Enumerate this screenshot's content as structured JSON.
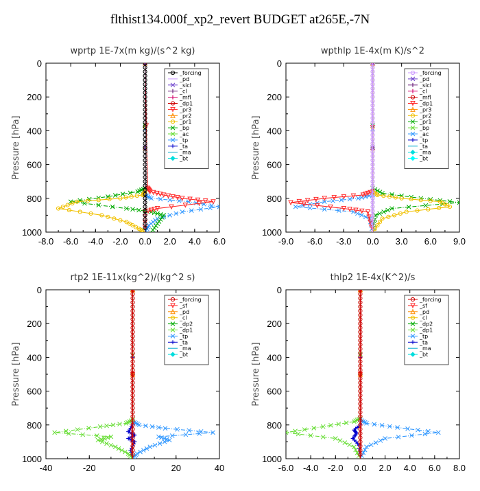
{
  "page": {
    "title": "flthist134.000f_xp2_revert  BUDGET at265E,-7N"
  },
  "chart_data": [
    {
      "type": "line",
      "title": "wprtp   1E-7x(m kg)/(s^2 kg)",
      "ylabel": "Pressure [hPa]",
      "xlim": [
        -8,
        6
      ],
      "ylim": [
        1000,
        0
      ],
      "xticks": [
        "-8.0",
        "-6.0",
        "-4.0",
        "-2.0",
        "0.0",
        "2.0",
        "4.0",
        "6.0"
      ],
      "xtick_values": [
        -8,
        -6,
        -4,
        -2,
        0,
        2,
        4,
        6
      ],
      "yticks": [
        "0",
        "200",
        "400",
        "600",
        "800",
        "1000"
      ],
      "ytick_values": [
        0,
        200,
        400,
        600,
        800,
        1000
      ],
      "legend_position": "top-right",
      "series": [
        {
          "name": "_forcing",
          "color": "#000000",
          "marker": "o",
          "x": [
            0,
            0,
            0,
            0,
            0,
            0,
            0,
            0,
            0,
            0,
            0
          ],
          "y": [
            0,
            100,
            200,
            300,
            400,
            500,
            600,
            700,
            800,
            900,
            1000
          ]
        },
        {
          "name": "_pd",
          "color": "#cc99ff",
          "marker": "-",
          "x": [
            0,
            0
          ],
          "y": [
            0,
            1000
          ]
        },
        {
          "name": "_sicl",
          "color": "#6a3dcc",
          "marker": "x",
          "x": [
            0,
            0
          ],
          "y": [
            0,
            1000
          ]
        },
        {
          "name": "_cl",
          "color": "#6b1f7a",
          "marker": "|",
          "x": [
            0,
            0
          ],
          "y": [
            0,
            1000
          ]
        },
        {
          "name": "_mfl",
          "color": "#d4006a",
          "marker": "|",
          "x": [
            0,
            0
          ],
          "y": [
            0,
            1000
          ]
        },
        {
          "name": "_dp1",
          "color": "#cc0000",
          "marker": "o",
          "x": [
            0,
            0
          ],
          "y": [
            0,
            1000
          ]
        },
        {
          "name": "_pr3",
          "color": "#ff2a2a",
          "marker": "v",
          "x": [
            0,
            0.2,
            0.4,
            1.5,
            3.0,
            5.5,
            1.0,
            0,
            0
          ],
          "y": [
            0,
            740,
            760,
            780,
            800,
            820,
            860,
            880,
            1000
          ]
        },
        {
          "name": "_pr2",
          "color": "#ff8c00",
          "marker": "^",
          "x": [
            0,
            0
          ],
          "y": [
            0,
            1000
          ]
        },
        {
          "name": "_pr1",
          "color": "#f0c000",
          "marker": "o",
          "x": [
            0,
            0,
            -0.2,
            -2.0,
            -5.5,
            -7.0,
            -3.5,
            -1.5,
            -0.5,
            0
          ],
          "y": [
            0,
            760,
            780,
            800,
            820,
            860,
            900,
            940,
            980,
            1000
          ]
        },
        {
          "name": "_bp",
          "color": "#00aa00",
          "marker": "x",
          "x": [
            0,
            0,
            -0.6,
            -3.0,
            -6.0,
            -1.5,
            0.5,
            1.5,
            1.0,
            0.5
          ],
          "y": [
            0,
            740,
            760,
            790,
            820,
            860,
            880,
            900,
            950,
            1000
          ]
        },
        {
          "name": "_ac",
          "color": "#66dd33",
          "marker": "x",
          "x": [
            0,
            0
          ],
          "y": [
            0,
            1000
          ]
        },
        {
          "name": "_tp",
          "color": "#3399ff",
          "marker": "x",
          "x": [
            0,
            0,
            0.5,
            3.5,
            6.0,
            3.0,
            1.0,
            0.3,
            0
          ],
          "y": [
            0,
            780,
            800,
            820,
            850,
            880,
            920,
            960,
            1000
          ]
        },
        {
          "name": "_ta",
          "color": "#0000cc",
          "marker": "+",
          "x": [
            0,
            0
          ],
          "y": [
            0,
            1000
          ]
        },
        {
          "name": "_ma",
          "color": "#00aacc",
          "marker": "-",
          "x": [
            0,
            0
          ],
          "y": [
            0,
            1000
          ]
        },
        {
          "name": "_bt",
          "color": "#00dddd",
          "marker": "d",
          "x": [
            0,
            0
          ],
          "y": [
            0,
            1000
          ]
        }
      ]
    },
    {
      "type": "line",
      "title": "wpthlp   1E-4x(m K)/s^2",
      "ylabel": "Pressure [hPa]",
      "xlim": [
        -9,
        9
      ],
      "ylim": [
        1000,
        0
      ],
      "xticks": [
        "-9.0",
        "-6.0",
        "-3.0",
        "0.0",
        "3.0",
        "6.0",
        "9.0"
      ],
      "xtick_values": [
        -9,
        -6,
        -3,
        0,
        3,
        6,
        9
      ],
      "yticks": [
        "0",
        "200",
        "400",
        "600",
        "800",
        "1000"
      ],
      "ytick_values": [
        0,
        200,
        400,
        600,
        800,
        1000
      ],
      "legend_position": "top-right",
      "series": [
        {
          "name": "_forcing",
          "color": "#cc99ff",
          "marker": "o",
          "x": [
            0,
            0,
            0,
            0,
            0,
            0,
            0,
            0,
            0,
            0,
            0
          ],
          "y": [
            0,
            100,
            200,
            300,
            400,
            500,
            600,
            700,
            800,
            900,
            1000
          ]
        },
        {
          "name": "_pd",
          "color": "#6a3dcc",
          "marker": "x",
          "x": [
            0,
            0
          ],
          "y": [
            0,
            1000
          ]
        },
        {
          "name": "_sicl",
          "color": "#6b1f7a",
          "marker": "|",
          "x": [
            0,
            0
          ],
          "y": [
            0,
            1000
          ]
        },
        {
          "name": "_cl",
          "color": "#d4006a",
          "marker": "|",
          "x": [
            0,
            0
          ],
          "y": [
            0,
            1000
          ]
        },
        {
          "name": "_mfl",
          "color": "#cc0000",
          "marker": "o",
          "x": [
            0,
            0
          ],
          "y": [
            0,
            1000
          ]
        },
        {
          "name": "_dp1",
          "color": "#ff2a2a",
          "marker": "v",
          "x": [
            0,
            0,
            -1.0,
            -5.0,
            -8.5,
            -3.0,
            -0.5,
            0
          ],
          "y": [
            0,
            760,
            780,
            800,
            825,
            860,
            880,
            1000
          ]
        },
        {
          "name": "_pr3",
          "color": "#ff8c00",
          "marker": "^",
          "x": [
            0,
            0
          ],
          "y": [
            0,
            1000
          ]
        },
        {
          "name": "_pr2",
          "color": "#f0c000",
          "marker": "o",
          "x": [
            0,
            0,
            0.5,
            3.0,
            7.0,
            8.0,
            3.5,
            1.0,
            0
          ],
          "y": [
            0,
            760,
            780,
            800,
            820,
            850,
            880,
            920,
            1000
          ]
        },
        {
          "name": "_pr1",
          "color": "#00aa00",
          "marker": "x",
          "x": [
            0,
            0,
            1.0,
            5.0,
            9.0,
            2.0,
            0.3,
            0
          ],
          "y": [
            0,
            740,
            770,
            800,
            825,
            860,
            900,
            1000
          ]
        },
        {
          "name": "_bp",
          "color": "#66dd33",
          "marker": "x",
          "x": [
            0,
            0
          ],
          "y": [
            0,
            1000
          ]
        },
        {
          "name": "_ac",
          "color": "#3399ff",
          "marker": "x",
          "x": [
            0,
            0,
            -1.5,
            -5.0,
            -8.0,
            -2.0,
            -0.3,
            0
          ],
          "y": [
            0,
            780,
            800,
            820,
            850,
            880,
            920,
            1000
          ]
        },
        {
          "name": "_tp",
          "color": "#0000cc",
          "marker": "+",
          "x": [
            0,
            0
          ],
          "y": [
            0,
            1000
          ]
        },
        {
          "name": "_ta",
          "color": "#00aacc",
          "marker": "-",
          "x": [
            0,
            0
          ],
          "y": [
            0,
            1000
          ]
        },
        {
          "name": "_ma",
          "color": "#00dddd",
          "marker": "d",
          "x": [
            0,
            0
          ],
          "y": [
            0,
            1000
          ]
        },
        {
          "name": "_bt",
          "color": "#00ffff",
          "marker": "d",
          "x": [
            0,
            0
          ],
          "y": [
            0,
            1000
          ]
        }
      ]
    },
    {
      "type": "line",
      "title": "rtp2   1E-11x(kg^2)/(kg^2 s)",
      "ylabel": "Pressure [hPa]",
      "xlim": [
        -40,
        40
      ],
      "ylim": [
        1000,
        0
      ],
      "xticks": [
        "-40",
        "-20",
        "0",
        "20",
        "40"
      ],
      "xtick_values": [
        -40,
        -20,
        0,
        20,
        40
      ],
      "yticks": [
        "0",
        "200",
        "400",
        "600",
        "800",
        "1000"
      ],
      "ytick_values": [
        0,
        200,
        400,
        600,
        800,
        1000
      ],
      "legend_position": "top-right",
      "series": [
        {
          "name": "_forcing",
          "color": "#cc0000",
          "marker": "o",
          "x": [
            0,
            0,
            0,
            0,
            0,
            0,
            0,
            0,
            0,
            0,
            0
          ],
          "y": [
            0,
            100,
            200,
            300,
            400,
            500,
            600,
            700,
            800,
            900,
            1000
          ]
        },
        {
          "name": "_sf",
          "color": "#ff2a2a",
          "marker": "v",
          "x": [
            0,
            0
          ],
          "y": [
            0,
            1000
          ]
        },
        {
          "name": "_pd",
          "color": "#ff8c00",
          "marker": "^",
          "x": [
            0,
            0
          ],
          "y": [
            0,
            1000
          ]
        },
        {
          "name": "_cl",
          "color": "#f0c000",
          "marker": "o",
          "x": [
            0,
            0
          ],
          "y": [
            0,
            1000
          ]
        },
        {
          "name": "_dp2",
          "color": "#00aa00",
          "marker": "x",
          "x": [
            0,
            0
          ],
          "y": [
            0,
            1000
          ]
        },
        {
          "name": "_dp1",
          "color": "#66dd33",
          "marker": "x",
          "x": [
            0,
            0,
            -3,
            -15,
            -36,
            -10,
            -16,
            -8,
            -2,
            0
          ],
          "y": [
            0,
            770,
            790,
            810,
            845,
            870,
            890,
            930,
            970,
            1000
          ]
        },
        {
          "name": "_tp",
          "color": "#3399ff",
          "marker": "x",
          "x": [
            0,
            0,
            3,
            15,
            37,
            12,
            17,
            8,
            2,
            0
          ],
          "y": [
            0,
            780,
            800,
            820,
            845,
            870,
            890,
            930,
            970,
            1000
          ]
        },
        {
          "name": "_ta",
          "color": "#0000cc",
          "marker": "+",
          "x": [
            0,
            0,
            -2,
            1,
            -2,
            1,
            -1,
            0
          ],
          "y": [
            0,
            800,
            840,
            860,
            880,
            900,
            950,
            1000
          ]
        },
        {
          "name": "_ma",
          "color": "#00aacc",
          "marker": "-",
          "x": [
            0,
            0
          ],
          "y": [
            0,
            1000
          ]
        },
        {
          "name": "_bt",
          "color": "#00dddd",
          "marker": "d",
          "x": [
            0,
            0
          ],
          "y": [
            0,
            1000
          ]
        }
      ]
    },
    {
      "type": "line",
      "title": "thlp2   1E-4x(K^2)/s",
      "ylabel": "Pressure [hPa]",
      "xlim": [
        -6,
        8
      ],
      "ylim": [
        1000,
        0
      ],
      "xticks": [
        "-6.0",
        "-4.0",
        "-2.0",
        "0.0",
        "2.0",
        "4.0",
        "6.0",
        "8.0"
      ],
      "xtick_values": [
        -6,
        -4,
        -2,
        0,
        2,
        4,
        6,
        8
      ],
      "yticks": [
        "0",
        "200",
        "400",
        "600",
        "800",
        "1000"
      ],
      "ytick_values": [
        0,
        200,
        400,
        600,
        800,
        1000
      ],
      "legend_position": "top-right",
      "series": [
        {
          "name": "_forcing",
          "color": "#cc0000",
          "marker": "o",
          "x": [
            0,
            0,
            0,
            0,
            0,
            0,
            0,
            0,
            0,
            0,
            0
          ],
          "y": [
            0,
            100,
            200,
            300,
            400,
            500,
            600,
            700,
            800,
            900,
            1000
          ]
        },
        {
          "name": "_sf",
          "color": "#ff2a2a",
          "marker": "v",
          "x": [
            0,
            0
          ],
          "y": [
            0,
            1000
          ]
        },
        {
          "name": "_pd",
          "color": "#ff8c00",
          "marker": "^",
          "x": [
            0,
            0
          ],
          "y": [
            0,
            1000
          ]
        },
        {
          "name": "_cl",
          "color": "#f0c000",
          "marker": "o",
          "x": [
            0,
            0
          ],
          "y": [
            0,
            1000
          ]
        },
        {
          "name": "_dp2",
          "color": "#00aa00",
          "marker": "x",
          "x": [
            0,
            0
          ],
          "y": [
            0,
            1000
          ]
        },
        {
          "name": "_dp1",
          "color": "#66dd33",
          "marker": "x",
          "x": [
            0,
            0,
            -0.5,
            -3,
            -6.0,
            -2,
            -0.5,
            0
          ],
          "y": [
            0,
            760,
            780,
            810,
            845,
            880,
            930,
            1000
          ]
        },
        {
          "name": "_tp",
          "color": "#3399ff",
          "marker": "x",
          "x": [
            0,
            0,
            0.5,
            3,
            6.3,
            2,
            0.5,
            0
          ],
          "y": [
            0,
            770,
            790,
            815,
            845,
            880,
            930,
            1000
          ]
        },
        {
          "name": "_ta",
          "color": "#0000cc",
          "marker": "+",
          "x": [
            0,
            0,
            -0.5,
            -0.3,
            -0.6,
            -0.1,
            0
          ],
          "y": [
            0,
            800,
            830,
            850,
            880,
            920,
            1000
          ]
        },
        {
          "name": "_ma",
          "color": "#00aacc",
          "marker": "-",
          "x": [
            0,
            0
          ],
          "y": [
            0,
            1000
          ]
        },
        {
          "name": "_bt",
          "color": "#00dddd",
          "marker": "d",
          "x": [
            0,
            0
          ],
          "y": [
            0,
            1000
          ]
        }
      ]
    }
  ]
}
